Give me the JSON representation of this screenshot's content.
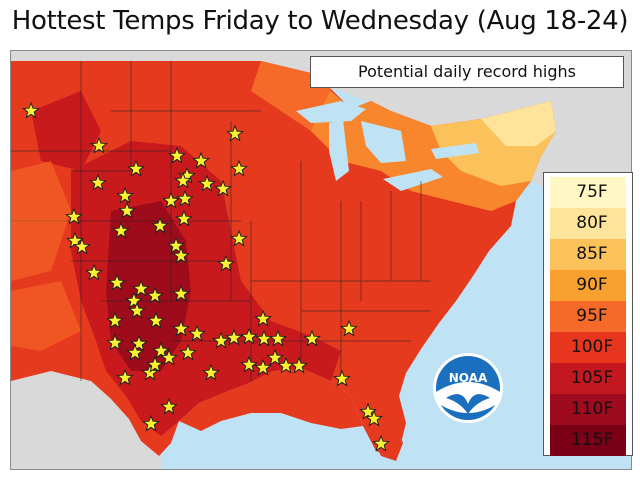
{
  "title": "Hottest Temps Friday to Wednesday (Aug 18-24)",
  "subtitle": "Potential daily record highs",
  "legend": {
    "entries": [
      {
        "label": "75F",
        "color": "#fff8c4"
      },
      {
        "label": "80F",
        "color": "#fde49a"
      },
      {
        "label": "85F",
        "color": "#fbc15a"
      },
      {
        "label": "90F",
        "color": "#f9a12e"
      },
      {
        "label": "95F",
        "color": "#f56a28"
      },
      {
        "label": "100F",
        "color": "#e8361e"
      },
      {
        "label": "105F",
        "color": "#c41820"
      },
      {
        "label": "110F",
        "color": "#9e0a1e"
      },
      {
        "label": "115F",
        "color": "#7a0015"
      }
    ]
  },
  "map": {
    "region": "Central and Eastern United States",
    "marker_icon": "star-icon",
    "marker_meaning": "Potential daily record highs",
    "ocean_color": "#bfe3f5",
    "land_outside_color": "#d9d9d9"
  },
  "logo": {
    "text": "NOAA",
    "icon": "noaa-logo-icon"
  }
}
